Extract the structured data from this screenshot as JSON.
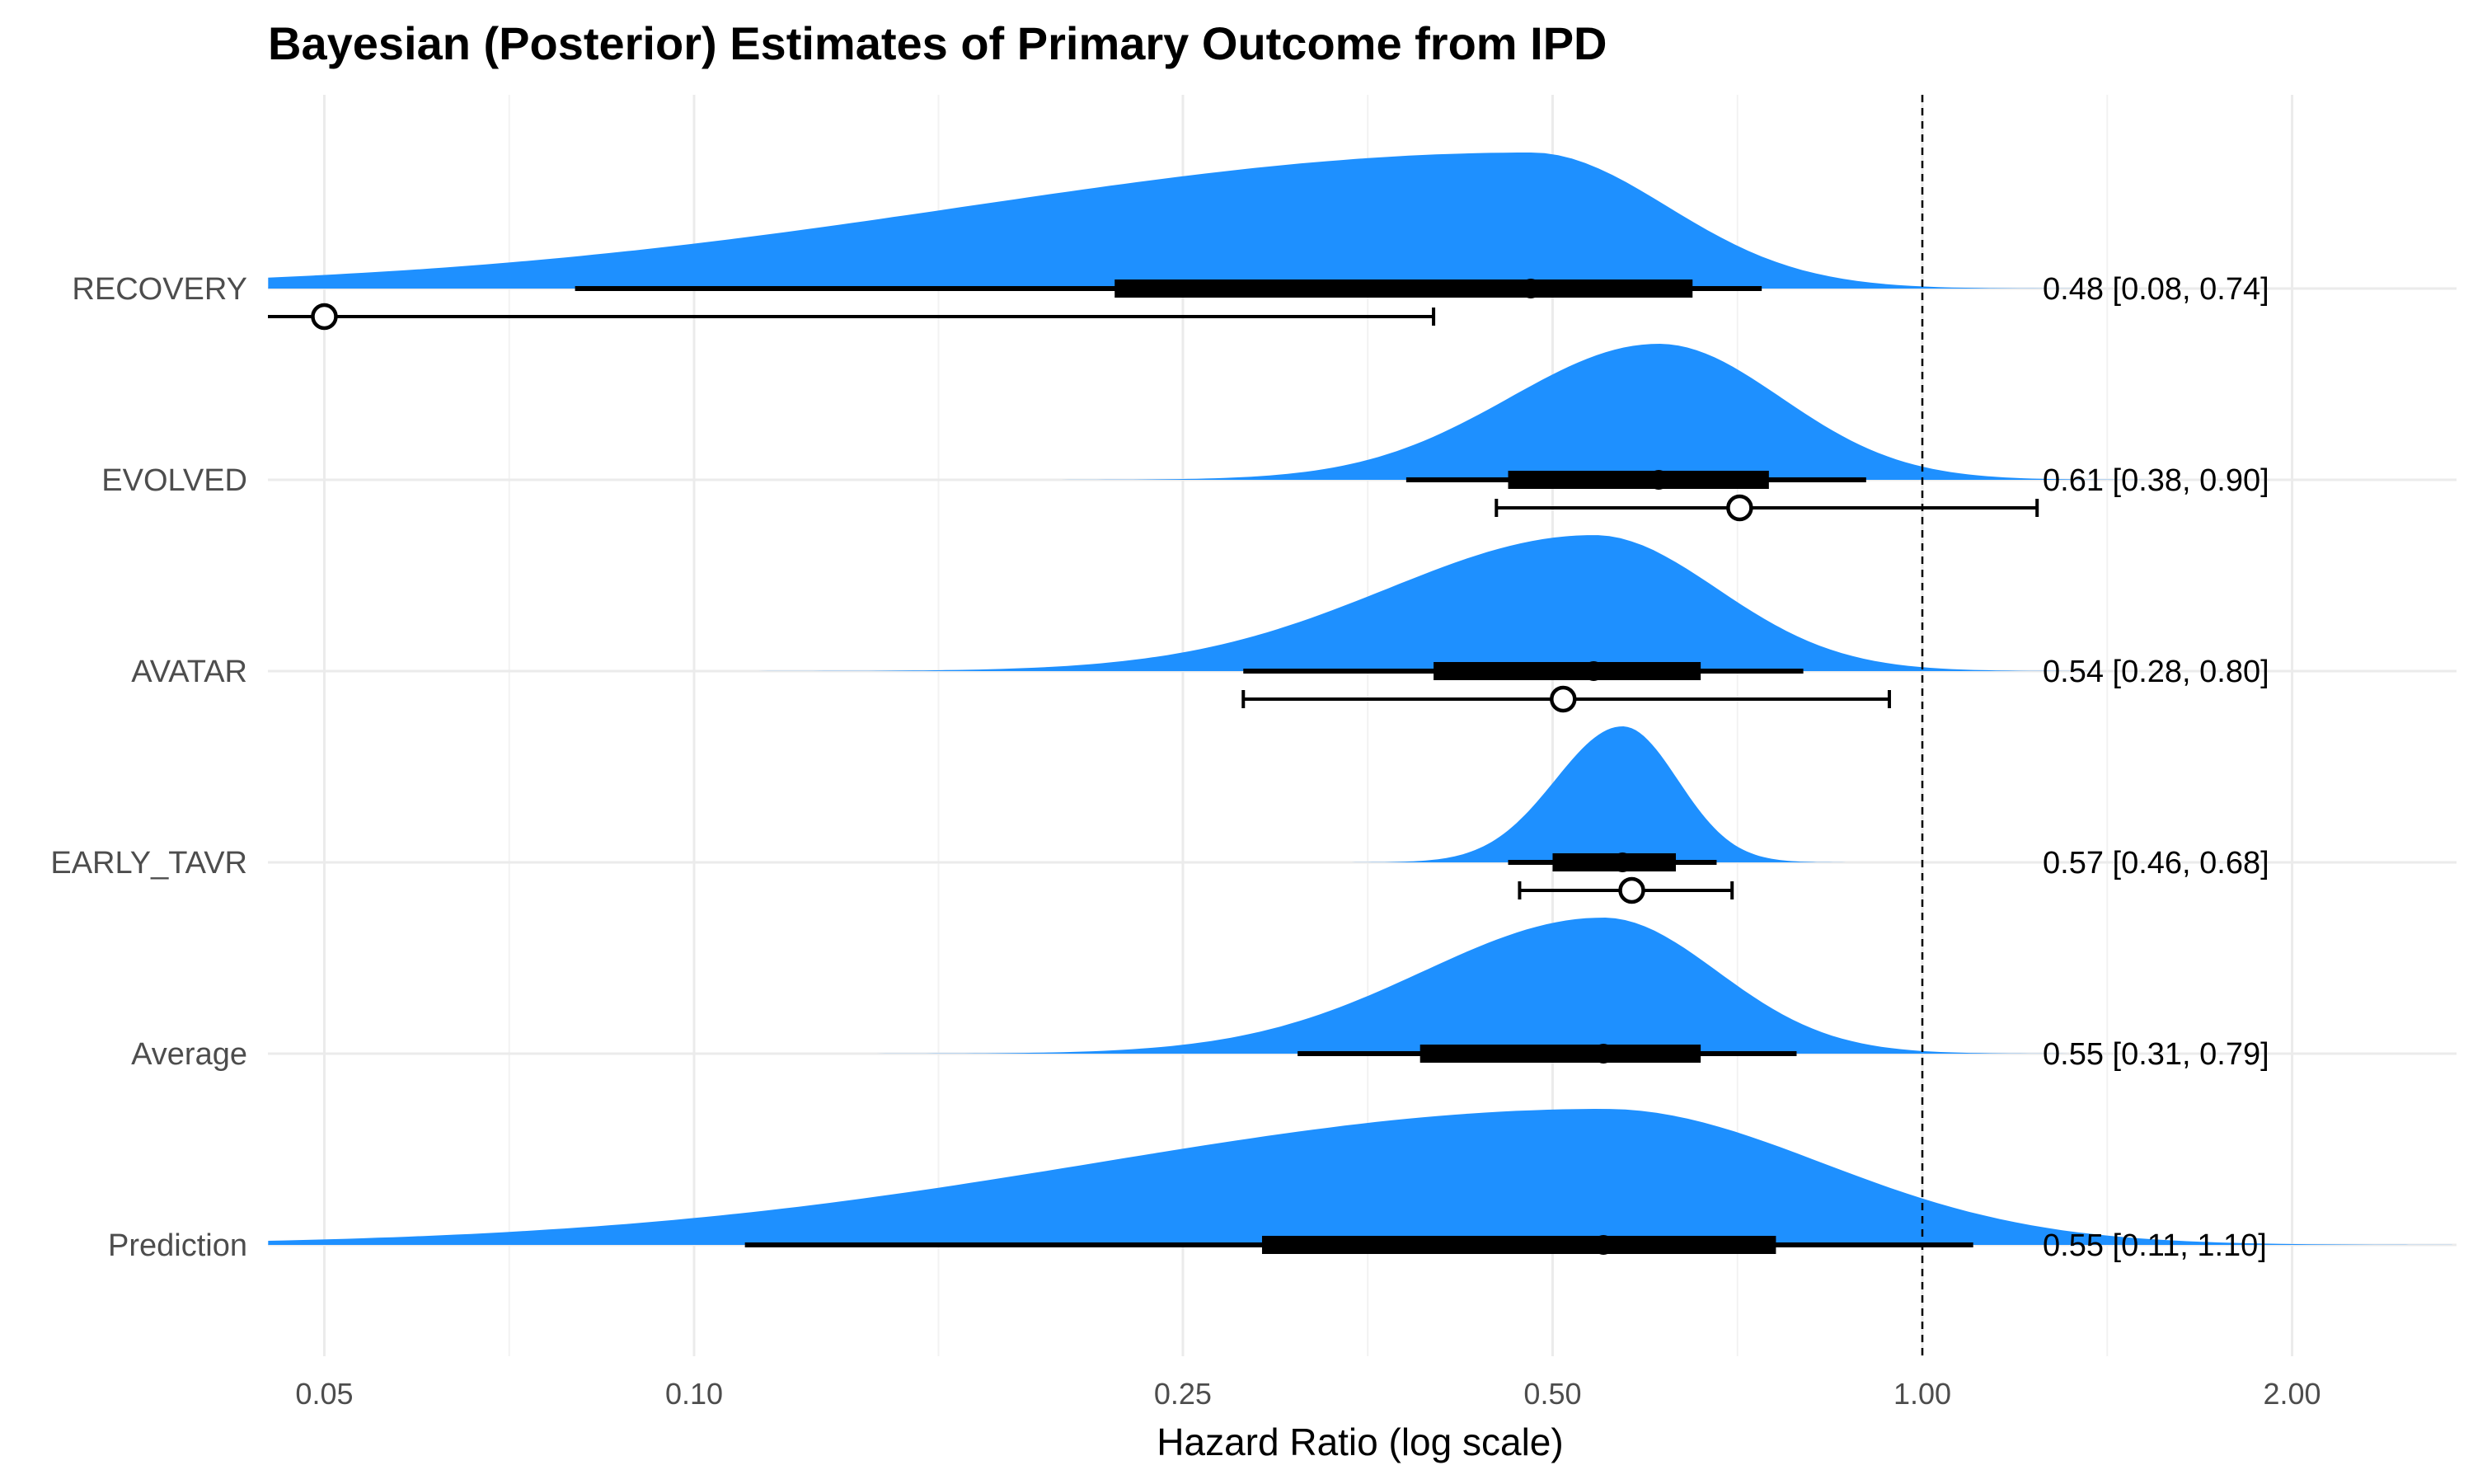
{
  "chart_data": {
    "type": "density-forest",
    "title": "Bayesian (Posterior) Estimates of Primary Outcome from IPD",
    "xlabel": "Hazard Ratio (log scale)",
    "ylabel": "",
    "x_scale": "log",
    "xlim": [
      0.045,
      2.7
    ],
    "x_ticks": [
      0.05,
      0.1,
      0.25,
      0.5,
      1.0,
      2.0
    ],
    "x_tick_labels": [
      "0.05",
      "0.10",
      "0.25",
      "0.50",
      "1.00",
      "2.00"
    ],
    "reference_line": 1.0,
    "grid": true,
    "colors": {
      "density": "#1e90ff",
      "interval": "#000000",
      "grid": "#ebebeb",
      "reference": "#000000"
    },
    "categories": [
      "RECOVERY",
      "EVOLVED",
      "AVATAR",
      "EARLY_TAVR",
      "Average",
      "Prediction"
    ],
    "posterior": [
      {
        "label": "RECOVERY",
        "median": 0.48,
        "inner": [
          0.22,
          0.65
        ],
        "outer": [
          0.08,
          0.74
        ],
        "annotation": "0.48 [0.08, 0.74]"
      },
      {
        "label": "EVOLVED",
        "median": 0.61,
        "inner": [
          0.46,
          0.75
        ],
        "outer": [
          0.38,
          0.9
        ],
        "annotation": "0.61 [0.38, 0.90]"
      },
      {
        "label": "AVATAR",
        "median": 0.54,
        "inner": [
          0.4,
          0.66
        ],
        "outer": [
          0.28,
          0.8
        ],
        "annotation": "0.54 [0.28, 0.80]"
      },
      {
        "label": "EARLY_TAVR",
        "median": 0.57,
        "inner": [
          0.5,
          0.63
        ],
        "outer": [
          0.46,
          0.68
        ],
        "annotation": "0.57 [0.46, 0.68]"
      },
      {
        "label": "Average",
        "median": 0.55,
        "inner": [
          0.39,
          0.66
        ],
        "outer": [
          0.31,
          0.79
        ],
        "annotation": "0.55 [0.31, 0.79]"
      },
      {
        "label": "Prediction",
        "median": 0.55,
        "inner": [
          0.29,
          0.76
        ],
        "outer": [
          0.11,
          1.1
        ],
        "annotation": "0.55 [0.11, 1.10]"
      }
    ],
    "observed": [
      {
        "label": "RECOVERY",
        "estimate": 0.05,
        "ci": [
          0.04,
          0.4
        ]
      },
      {
        "label": "EVOLVED",
        "estimate": 0.71,
        "ci": [
          0.45,
          1.24
        ]
      },
      {
        "label": "AVATAR",
        "estimate": 0.51,
        "ci": [
          0.28,
          0.94
        ]
      },
      {
        "label": "EARLY_TAVR",
        "estimate": 0.58,
        "ci": [
          0.47,
          0.7
        ]
      }
    ]
  }
}
